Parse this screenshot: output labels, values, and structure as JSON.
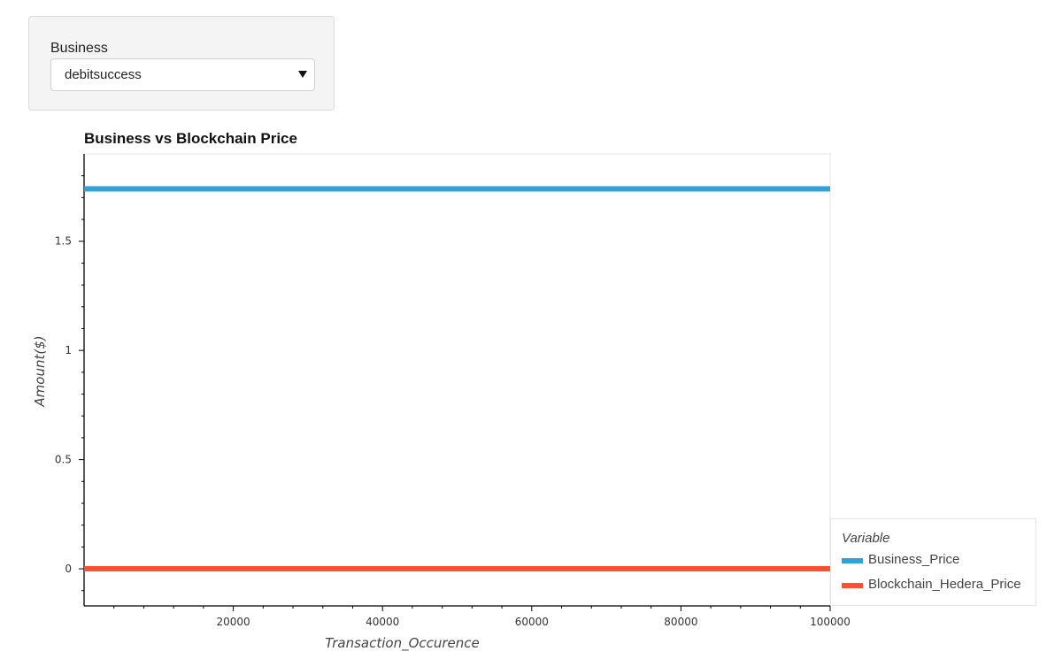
{
  "widget": {
    "label": "Business",
    "selected": "debitsuccess"
  },
  "chart_data": {
    "type": "line",
    "title": "Business vs Blockchain Price",
    "xlabel": "Transaction_Occurence",
    "ylabel": "Amount($)",
    "xlim": [
      0,
      100000
    ],
    "ylim": [
      -0.17,
      1.9
    ],
    "x_ticks": [
      20000,
      40000,
      60000,
      80000,
      100000
    ],
    "y_ticks": [
      0,
      0.5,
      1,
      1.5
    ],
    "y_tick_labels": [
      "0",
      "0.5",
      "1",
      "1.5"
    ],
    "grid": false,
    "legend_title": "Variable",
    "legend_position": "bottom-right-outside",
    "series": [
      {
        "name": "Business_Price",
        "color": "#30a2da",
        "x": [
          0,
          100000
        ],
        "y": [
          1.74,
          1.74
        ]
      },
      {
        "name": "Blockchain_Hedera_Price",
        "color": "#fc4f30",
        "x": [
          0,
          100000
        ],
        "y": [
          0.0,
          0.0
        ]
      }
    ]
  }
}
